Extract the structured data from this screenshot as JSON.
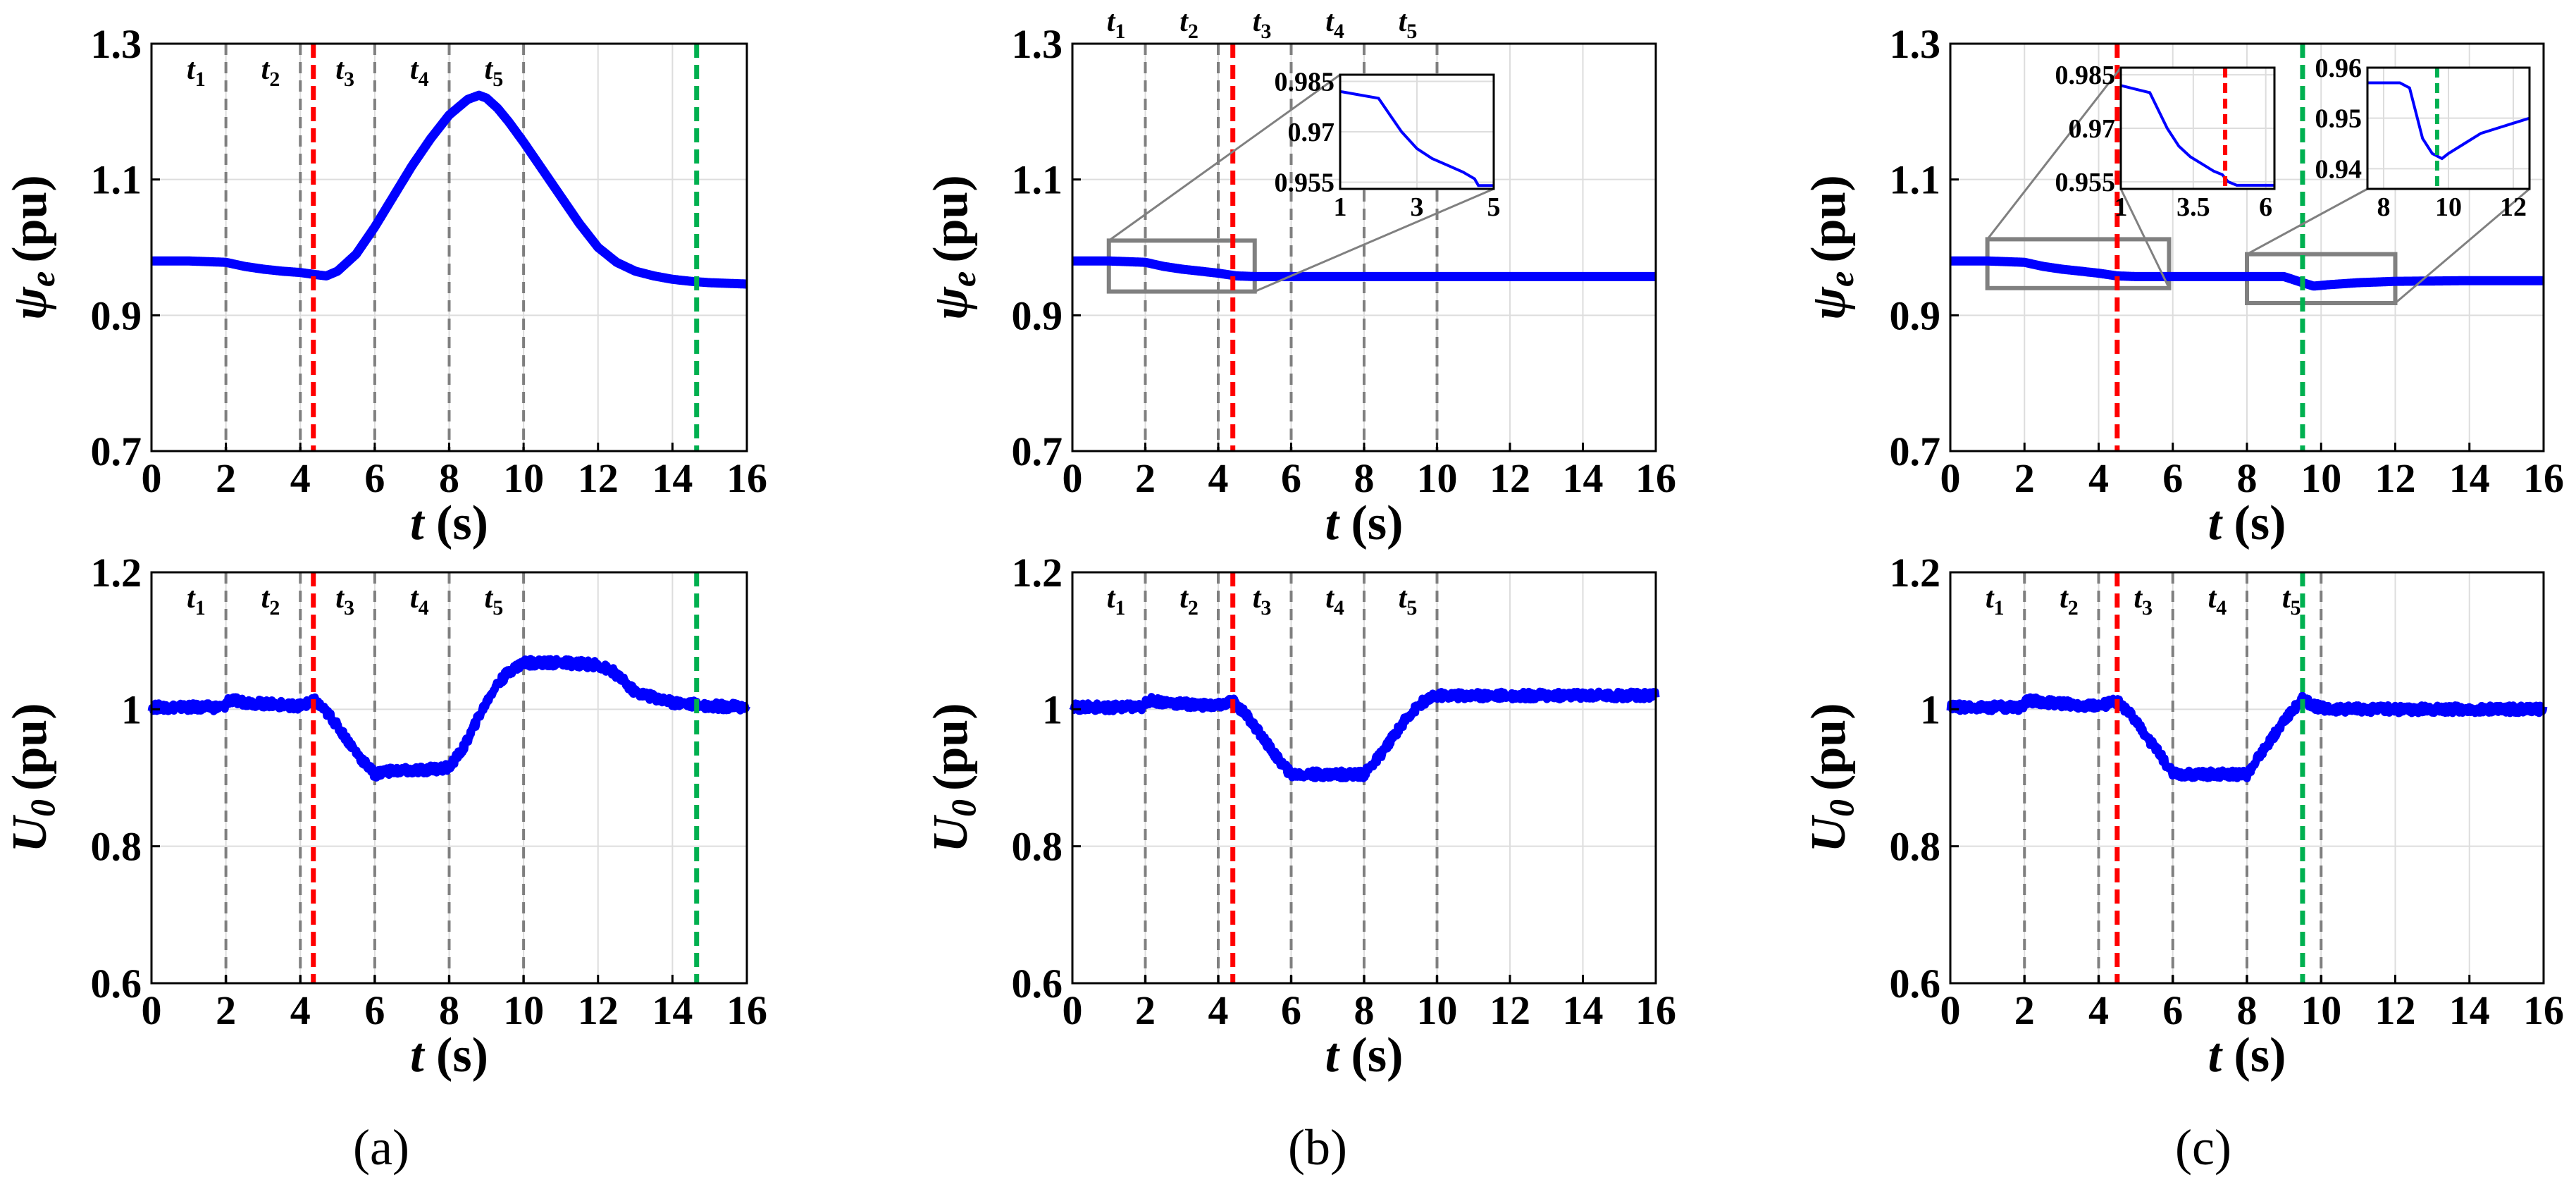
{
  "figure": {
    "captions": [
      "(a)",
      "(b)",
      "(c)"
    ],
    "colors": {
      "signal": "#0000ff",
      "fault": "#ff0000",
      "recovery": "#00b050",
      "phase": "#7f7f7f",
      "grid": "#dddddd",
      "zoom_box": "#808080"
    }
  },
  "chart_data": [
    {
      "id": "a-top",
      "type": "line",
      "panel": "(a)",
      "title": "",
      "xlabel": "t (s)",
      "ylabel": "ψe (pu)",
      "xlim": [
        0,
        16
      ],
      "ylim": [
        0.7,
        1.3
      ],
      "xticks": [
        "0",
        "2",
        "4",
        "6",
        "8",
        "10",
        "12",
        "14",
        "16"
      ],
      "yticks": [
        "0.7",
        "0.9",
        "1.1",
        "1.3"
      ],
      "ytick_values": [
        0.7,
        0.9,
        1.1,
        1.3
      ],
      "phase_lines": [
        2,
        4,
        6,
        8,
        10
      ],
      "phase_labels": [
        {
          "t": "t",
          "sub": "1",
          "x": 1.2
        },
        {
          "t": "t",
          "sub": "2",
          "x": 3.2
        },
        {
          "t": "t",
          "sub": "3",
          "x": 5.2
        },
        {
          "t": "t",
          "sub": "4",
          "x": 7.2
        },
        {
          "t": "t",
          "sub": "5",
          "x": 9.2
        }
      ],
      "fault_line": 4.35,
      "recovery_line": 14.65,
      "series": [
        {
          "name": "ψe",
          "noise": 0,
          "x": [
            0,
            1,
            2,
            2.5,
            3,
            3.5,
            4,
            4.4,
            4.7,
            5,
            5.5,
            6,
            6.5,
            7,
            7.5,
            8,
            8.5,
            8.8,
            9,
            9.3,
            9.6,
            10,
            10.5,
            11,
            11.5,
            12,
            12.5,
            13,
            13.5,
            14,
            14.5,
            15,
            15.5,
            16
          ],
          "y": [
            0.98,
            0.98,
            0.978,
            0.972,
            0.968,
            0.965,
            0.963,
            0.96,
            0.958,
            0.965,
            0.99,
            1.03,
            1.075,
            1.12,
            1.16,
            1.195,
            1.218,
            1.224,
            1.22,
            1.205,
            1.185,
            1.155,
            1.115,
            1.075,
            1.035,
            1.0,
            0.978,
            0.965,
            0.958,
            0.953,
            0.95,
            0.948,
            0.947,
            0.946
          ]
        }
      ]
    },
    {
      "id": "a-bottom",
      "type": "line",
      "panel": "(a)",
      "title": "",
      "xlabel": "t (s)",
      "ylabel": "U0 (pu)",
      "xlim": [
        0,
        16
      ],
      "ylim": [
        0.6,
        1.2
      ],
      "xticks": [
        "0",
        "2",
        "4",
        "6",
        "8",
        "10",
        "12",
        "14",
        "16"
      ],
      "yticks": [
        "0.6",
        "0.8",
        "1",
        "1.2"
      ],
      "ytick_values": [
        0.6,
        0.8,
        1.0,
        1.2
      ],
      "phase_lines": [
        2,
        4,
        6,
        8,
        10
      ],
      "phase_labels": [
        {
          "t": "t",
          "sub": "1",
          "x": 1.2
        },
        {
          "t": "t",
          "sub": "2",
          "x": 3.2
        },
        {
          "t": "t",
          "sub": "3",
          "x": 5.2
        },
        {
          "t": "t",
          "sub": "4",
          "x": 7.2
        },
        {
          "t": "t",
          "sub": "5",
          "x": 9.2
        }
      ],
      "fault_line": 4.35,
      "recovery_line": 14.65,
      "series": [
        {
          "name": "U0",
          "noise": 0.006,
          "x": [
            0,
            1,
            1.95,
            2.05,
            3,
            4,
            4.4,
            4.8,
            5.2,
            5.6,
            6,
            6.3,
            7,
            8,
            8.4,
            8.8,
            9.2,
            9.6,
            10,
            11,
            12,
            12.4,
            13,
            14,
            15,
            16
          ],
          "y": [
            1.003,
            1.003,
            1.003,
            1.013,
            1.008,
            1.005,
            1.012,
            0.99,
            0.96,
            0.93,
            0.905,
            0.91,
            0.91,
            0.915,
            0.945,
            0.99,
            1.03,
            1.055,
            1.068,
            1.068,
            1.065,
            1.055,
            1.025,
            1.01,
            1.005,
            1.003
          ]
        }
      ]
    },
    {
      "id": "b-top",
      "type": "line",
      "panel": "(b)",
      "title": "",
      "xlabel": "t (s)",
      "ylabel": "ψe (pu)",
      "xlim": [
        0,
        16
      ],
      "ylim": [
        0.7,
        1.3
      ],
      "xticks": [
        "0",
        "2",
        "4",
        "6",
        "8",
        "10",
        "12",
        "14",
        "16"
      ],
      "yticks": [
        "0.7",
        "0.9",
        "1.1",
        "1.3"
      ],
      "ytick_values": [
        0.7,
        0.9,
        1.1,
        1.3
      ],
      "phase_lines": [
        2,
        4,
        6,
        8,
        10
      ],
      "phase_labels": [
        {
          "t": "t",
          "sub": "1",
          "x": 1.2
        },
        {
          "t": "t",
          "sub": "2",
          "x": 3.2
        },
        {
          "t": "t",
          "sub": "3",
          "x": 5.2
        },
        {
          "t": "t",
          "sub": "4",
          "x": 7.2
        },
        {
          "t": "t",
          "sub": "5",
          "x": 9.2
        }
      ],
      "labels_above_axes": true,
      "fault_line": 4.4,
      "recovery_line": null,
      "series": [
        {
          "name": "ψe",
          "noise": 0,
          "x": [
            0,
            1,
            2,
            2.5,
            3,
            3.5,
            4,
            4.5,
            5,
            6,
            8,
            10,
            12,
            14,
            16
          ],
          "y": [
            0.98,
            0.98,
            0.978,
            0.972,
            0.968,
            0.965,
            0.962,
            0.958,
            0.957,
            0.957,
            0.957,
            0.957,
            0.957,
            0.957,
            0.957
          ]
        }
      ],
      "zoom_region": {
        "x": [
          1,
          5
        ],
        "y": [
          0.935,
          1.01
        ]
      },
      "inset": {
        "xlim": [
          1,
          5
        ],
        "ylim": [
          0.953,
          0.987
        ],
        "xticks": [
          "1",
          "3",
          "5"
        ],
        "xtick_values": [
          1,
          3,
          5
        ],
        "yticks": [
          "0.955",
          "0.97",
          "0.985"
        ],
        "ytick_values": [
          0.955,
          0.97,
          0.985
        ],
        "series": {
          "x": [
            1,
            1.5,
            2,
            2.3,
            2.6,
            3,
            3.4,
            3.8,
            4.2,
            4.5,
            4.6,
            5
          ],
          "y": [
            0.982,
            0.981,
            0.98,
            0.975,
            0.97,
            0.965,
            0.962,
            0.96,
            0.958,
            0.956,
            0.954,
            0.954
          ]
        }
      }
    },
    {
      "id": "b-bottom",
      "type": "line",
      "panel": "(b)",
      "title": "",
      "xlabel": "t (s)",
      "ylabel": "U0 (pu)",
      "xlim": [
        0,
        16
      ],
      "ylim": [
        0.6,
        1.2
      ],
      "xticks": [
        "0",
        "2",
        "4",
        "6",
        "8",
        "10",
        "12",
        "14",
        "16"
      ],
      "yticks": [
        "0.6",
        "0.8",
        "1",
        "1.2"
      ],
      "ytick_values": [
        0.6,
        0.8,
        1.0,
        1.2
      ],
      "phase_lines": [
        2,
        4,
        6,
        8,
        10
      ],
      "phase_labels": [
        {
          "t": "t",
          "sub": "1",
          "x": 1.2
        },
        {
          "t": "t",
          "sub": "2",
          "x": 3.2
        },
        {
          "t": "t",
          "sub": "3",
          "x": 5.2
        },
        {
          "t": "t",
          "sub": "4",
          "x": 7.2
        },
        {
          "t": "t",
          "sub": "5",
          "x": 9.2
        }
      ],
      "fault_line": 4.4,
      "recovery_line": null,
      "series": [
        {
          "name": "U0",
          "noise": 0.006,
          "x": [
            0,
            1,
            1.95,
            2.05,
            3,
            4,
            4.4,
            4.8,
            5.2,
            5.6,
            6,
            6.3,
            7,
            8,
            8.4,
            8.8,
            9.2,
            9.6,
            10,
            11,
            12,
            13,
            14,
            15,
            16
          ],
          "y": [
            1.003,
            1.003,
            1.003,
            1.013,
            1.008,
            1.005,
            1.012,
            0.99,
            0.96,
            0.93,
            0.905,
            0.905,
            0.905,
            0.905,
            0.93,
            0.96,
            0.99,
            1.01,
            1.02,
            1.02,
            1.02,
            1.02,
            1.02,
            1.02,
            1.02
          ]
        }
      ]
    },
    {
      "id": "c-top",
      "type": "line",
      "panel": "(c)",
      "title": "",
      "xlabel": "t (s)",
      "ylabel": "ψe (pu)",
      "xlim": [
        0,
        16
      ],
      "ylim": [
        0.7,
        1.3
      ],
      "xticks": [
        "0",
        "2",
        "4",
        "6",
        "8",
        "10",
        "12",
        "14",
        "16"
      ],
      "yticks": [
        "0.7",
        "0.9",
        "1.1",
        "1.3"
      ],
      "ytick_values": [
        0.7,
        0.9,
        1.1,
        1.3
      ],
      "phase_lines": [],
      "phase_labels": [],
      "fault_line": 4.5,
      "recovery_line": 9.5,
      "series": [
        {
          "name": "ψe",
          "noise": 0,
          "x": [
            0,
            1,
            2,
            2.5,
            3,
            3.5,
            4,
            4.5,
            5,
            6,
            8,
            9,
            9.5,
            9.8,
            10.2,
            11,
            12,
            14,
            16
          ],
          "y": [
            0.98,
            0.98,
            0.978,
            0.972,
            0.968,
            0.965,
            0.962,
            0.958,
            0.957,
            0.957,
            0.957,
            0.957,
            0.948,
            0.943,
            0.945,
            0.948,
            0.95,
            0.951,
            0.951
          ]
        }
      ],
      "zoom_region": {
        "x": [
          1,
          5.9
        ],
        "y": [
          0.94,
          1.012
        ]
      },
      "zoom_region_2": {
        "x": [
          8,
          12
        ],
        "y": [
          0.918,
          0.99
        ]
      },
      "inset": {
        "xlim": [
          1,
          6.3
        ],
        "ylim": [
          0.953,
          0.987
        ],
        "xticks": [
          "1",
          "3.5",
          "6"
        ],
        "xtick_values": [
          1,
          3.5,
          6
        ],
        "yticks": [
          "0.955",
          "0.97",
          "0.985"
        ],
        "ytick_values": [
          0.955,
          0.97,
          0.985
        ],
        "marker": 4.6,
        "series": {
          "x": [
            1,
            1.5,
            2,
            2.3,
            2.6,
            3,
            3.4,
            3.8,
            4.2,
            4.5,
            4.7,
            5,
            6.3
          ],
          "y": [
            0.982,
            0.981,
            0.98,
            0.975,
            0.97,
            0.965,
            0.962,
            0.96,
            0.958,
            0.957,
            0.955,
            0.954,
            0.954
          ]
        }
      },
      "inset_2": {
        "xlim": [
          7.5,
          12.5
        ],
        "ylim": [
          0.936,
          0.96
        ],
        "xticks": [
          "8",
          "10",
          "12"
        ],
        "xtick_values": [
          8,
          10,
          12
        ],
        "yticks": [
          "0.94",
          "0.95",
          "0.96"
        ],
        "ytick_values": [
          0.94,
          0.95,
          0.96
        ],
        "marker": 9.65,
        "series": {
          "x": [
            7.5,
            8,
            8.5,
            8.8,
            9,
            9.2,
            9.5,
            9.8,
            10,
            10.5,
            11,
            11.5,
            12,
            12.5
          ],
          "y": [
            0.957,
            0.957,
            0.957,
            0.956,
            0.951,
            0.946,
            0.943,
            0.942,
            0.943,
            0.945,
            0.947,
            0.948,
            0.949,
            0.95
          ]
        }
      }
    },
    {
      "id": "c-bottom",
      "type": "line",
      "panel": "(c)",
      "title": "",
      "xlabel": "t (s)",
      "ylabel": "U0 (pu)",
      "xlim": [
        0,
        16
      ],
      "ylim": [
        0.6,
        1.2
      ],
      "xticks": [
        "0",
        "2",
        "4",
        "6",
        "8",
        "10",
        "12",
        "14",
        "16"
      ],
      "yticks": [
        "0.6",
        "0.8",
        "1",
        "1.2"
      ],
      "ytick_values": [
        0.6,
        0.8,
        1.0,
        1.2
      ],
      "phase_lines": [
        2,
        4,
        6,
        8,
        10
      ],
      "phase_labels": [
        {
          "t": "t",
          "sub": "1",
          "x": 1.2
        },
        {
          "t": "t",
          "sub": "2",
          "x": 3.2
        },
        {
          "t": "t",
          "sub": "3",
          "x": 5.2
        },
        {
          "t": "t",
          "sub": "4",
          "x": 7.2
        },
        {
          "t": "t",
          "sub": "5",
          "x": 9.2
        }
      ],
      "fault_line": 4.5,
      "recovery_line": 9.5,
      "series": [
        {
          "name": "U0",
          "noise": 0.006,
          "x": [
            0,
            1,
            1.95,
            2.05,
            3,
            4,
            4.5,
            4.9,
            5.3,
            5.7,
            6,
            6.3,
            7,
            8,
            8.3,
            8.7,
            9.1,
            9.5,
            9.8,
            10.2,
            11,
            12,
            14,
            16
          ],
          "y": [
            1.003,
            1.003,
            1.003,
            1.013,
            1.008,
            1.005,
            1.012,
            0.99,
            0.96,
            0.93,
            0.905,
            0.905,
            0.905,
            0.905,
            0.93,
            0.96,
            0.99,
            1.015,
            1.005,
            1.0,
            1.0,
            1.0,
            1.0,
            1.0
          ]
        }
      ]
    }
  ]
}
